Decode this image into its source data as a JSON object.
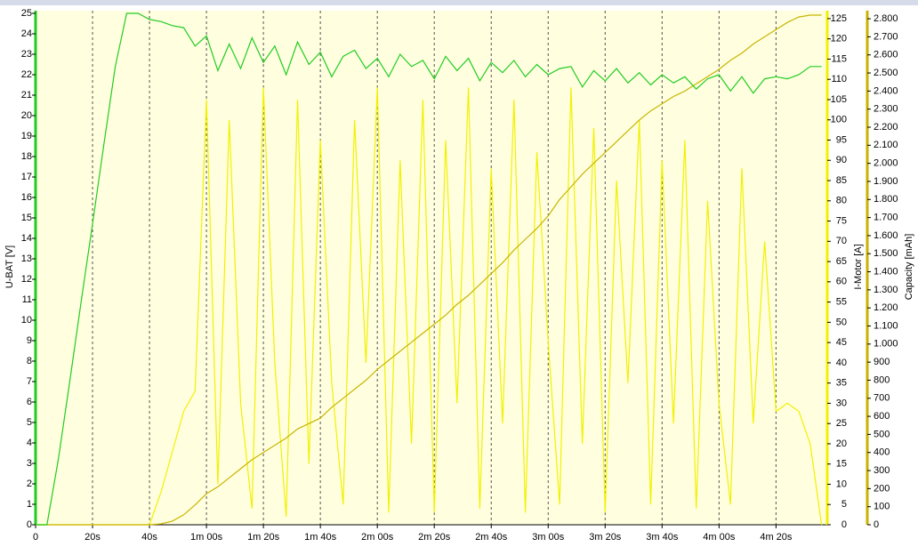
{
  "chart_data": {
    "type": "line",
    "ylabel": "U-BAT [V]",
    "y2label": "I-Motor [A]",
    "y3label": "Capacity [mAh]",
    "xlim": [
      0,
      278
    ],
    "xticks": [
      0,
      {
        "value": 20,
        "label": "20s"
      },
      {
        "value": 40,
        "label": "40s"
      },
      {
        "value": 60,
        "label": "1m 00s"
      },
      {
        "value": 80,
        "label": "1m 20s"
      },
      {
        "value": 100,
        "label": "1m 40s"
      },
      {
        "value": 120,
        "label": "2m 00s"
      },
      {
        "value": 140,
        "label": "2m 20s"
      },
      {
        "value": 160,
        "label": "2m 40s"
      },
      {
        "value": 180,
        "label": "3m 00s"
      },
      {
        "value": 200,
        "label": "3m 20s"
      },
      {
        "value": 220,
        "label": "3m 40s"
      },
      {
        "value": 240,
        "label": "4m 00s"
      },
      {
        "value": 260,
        "label": "4m 20s"
      }
    ],
    "ylim": [
      0,
      25
    ],
    "yticks": [
      0,
      1,
      2,
      3,
      4,
      5,
      6,
      7,
      8,
      9,
      10,
      11,
      12,
      13,
      14,
      15,
      16,
      17,
      18,
      19,
      20,
      21,
      22,
      23,
      24,
      25
    ],
    "y2lim": [
      0,
      126.3
    ],
    "y2ticks": [
      0,
      5,
      10,
      15,
      20,
      25,
      30,
      35,
      40,
      45,
      50,
      55,
      60,
      65,
      70,
      75,
      80,
      85,
      90,
      95,
      100,
      105,
      110,
      115,
      120,
      125
    ],
    "y3lim": [
      0,
      2830
    ],
    "y3ticks": [
      0,
      100,
      200,
      300,
      400,
      500,
      600,
      700,
      800,
      900,
      {
        "value": 1000,
        "label": "1.000"
      },
      {
        "value": 1100,
        "label": "1.100"
      },
      {
        "value": 1200,
        "label": "1.200"
      },
      {
        "value": 1300,
        "label": "1.300"
      },
      {
        "value": 1400,
        "label": "1.400"
      },
      {
        "value": 1500,
        "label": "1.500"
      },
      {
        "value": 1600,
        "label": "1.600"
      },
      {
        "value": 1700,
        "label": "1.700"
      },
      {
        "value": 1800,
        "label": "1.800"
      },
      {
        "value": 1900,
        "label": "1.900"
      },
      {
        "value": 2000,
        "label": "2.000"
      },
      {
        "value": 2100,
        "label": "2.100"
      },
      {
        "value": 2200,
        "label": "2.200"
      },
      {
        "value": 2300,
        "label": "2.300"
      },
      {
        "value": 2400,
        "label": "2.400"
      },
      {
        "value": 2500,
        "label": "2.500"
      },
      {
        "value": 2600,
        "label": "2.600"
      },
      {
        "value": 2700,
        "label": "2.700"
      },
      {
        "value": 2800,
        "label": "2.800"
      }
    ],
    "x": [
      0,
      4,
      8,
      12,
      16,
      20,
      24,
      28,
      32,
      36,
      40,
      44,
      48,
      52,
      56,
      60,
      64,
      68,
      72,
      76,
      80,
      84,
      88,
      92,
      96,
      100,
      104,
      108,
      112,
      116,
      120,
      124,
      128,
      132,
      136,
      140,
      144,
      148,
      152,
      156,
      160,
      164,
      168,
      172,
      176,
      180,
      184,
      188,
      192,
      196,
      200,
      204,
      208,
      212,
      216,
      220,
      224,
      228,
      232,
      236,
      240,
      244,
      248,
      252,
      256,
      260,
      264,
      268,
      272,
      276
    ],
    "series": [
      {
        "color": "#22cc22",
        "axis": "y",
        "values": [
          0,
          0,
          3.2,
          7.0,
          10.9,
          14.7,
          18.6,
          22.4,
          25,
          25,
          24.7,
          24.6,
          24.4,
          24.3,
          23.4,
          23.9,
          22.2,
          23.5,
          22.3,
          23.8,
          22.6,
          23.4,
          22.0,
          23.6,
          22.5,
          23.1,
          21.9,
          22.9,
          23.2,
          22.3,
          22.8,
          21.9,
          23.0,
          22.4,
          22.7,
          21.8,
          22.9,
          22.2,
          22.8,
          21.7,
          22.6,
          22.1,
          22.7,
          21.9,
          22.5,
          22.0,
          22.3,
          22.4,
          21.4,
          22.2,
          21.7,
          22.3,
          21.6,
          22.1,
          21.5,
          22.0,
          21.6,
          21.9,
          21.3,
          21.8,
          22.0,
          21.2,
          21.9,
          21.1,
          21.8,
          21.9,
          21.8,
          22.0,
          22.4,
          22.4
        ]
      },
      {
        "color": "#f2f000",
        "axis": "y2",
        "values": [
          0,
          0,
          0,
          0,
          0,
          0,
          0,
          0,
          0,
          0,
          0,
          8,
          18,
          28,
          33,
          105,
          10,
          100,
          30,
          4,
          108,
          40,
          2,
          105,
          15,
          95,
          35,
          5,
          100,
          40,
          108,
          3,
          90,
          20,
          105,
          3,
          95,
          30,
          108,
          4,
          88,
          25,
          105,
          3,
          92,
          45,
          5,
          108,
          20,
          98,
          3,
          85,
          35,
          100,
          5,
          90,
          25,
          95,
          4,
          80,
          30,
          5,
          88,
          25,
          70,
          28,
          30,
          28,
          20,
          0
        ]
      },
      {
        "color": "#c8b400",
        "axis": "y3",
        "values": [
          0,
          0,
          0,
          0,
          0,
          0,
          0,
          0,
          0,
          0,
          0,
          5,
          20,
          55,
          110,
          172,
          210,
          260,
          310,
          360,
          400,
          440,
          480,
          530,
          560,
          590,
          650,
          700,
          750,
          800,
          860,
          910,
          960,
          1010,
          1060,
          1110,
          1160,
          1220,
          1270,
          1330,
          1390,
          1450,
          1520,
          1580,
          1640,
          1710,
          1800,
          1870,
          1940,
          2000,
          2060,
          2120,
          2180,
          2240,
          2290,
          2330,
          2370,
          2400,
          2440,
          2480,
          2520,
          2570,
          2610,
          2660,
          2700,
          2740,
          2780,
          2810,
          2820,
          2820
        ]
      }
    ]
  }
}
